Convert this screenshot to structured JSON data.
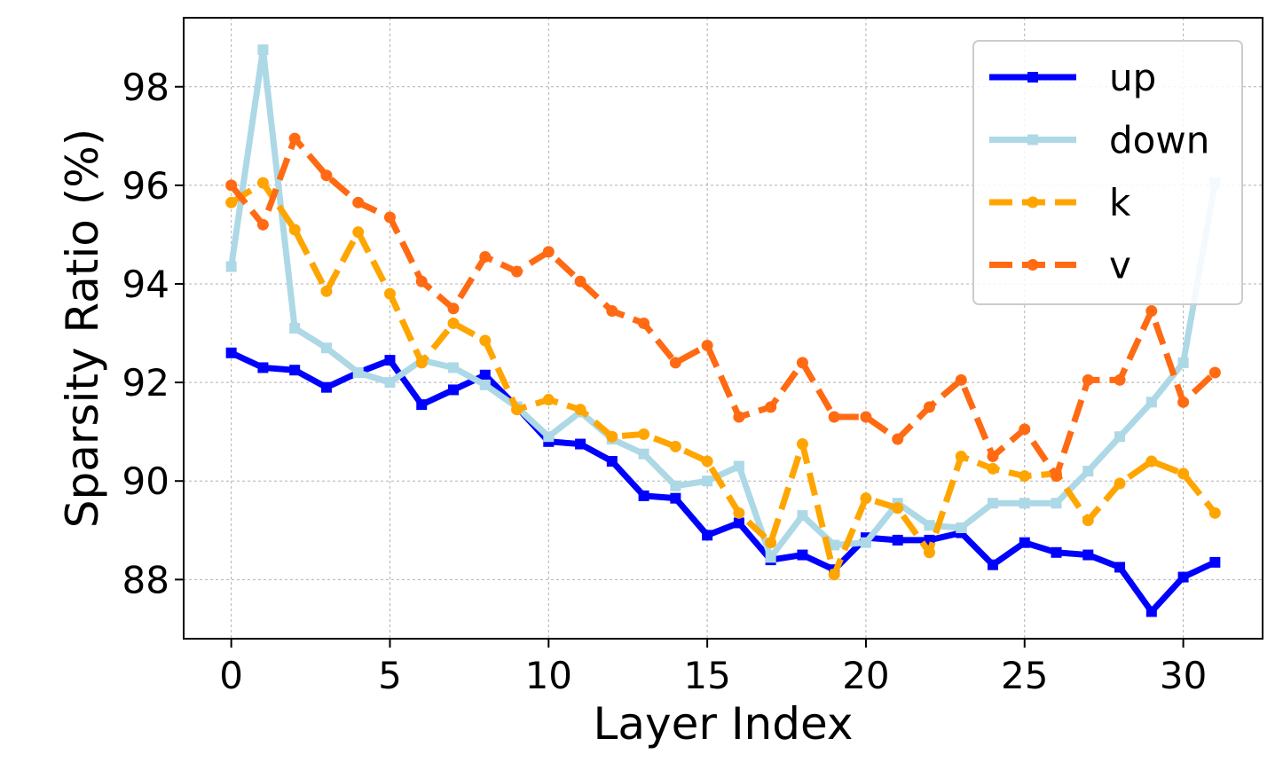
{
  "chart_data": {
    "type": "line",
    "xlabel": "Layer Index",
    "ylabel": "Sparsity Ratio (%)",
    "xlim": [
      -1.5,
      32.5
    ],
    "ylim": [
      86.8,
      99.4
    ],
    "xticks": [
      0,
      5,
      10,
      15,
      20,
      25,
      30
    ],
    "yticks": [
      88,
      90,
      92,
      94,
      96,
      98
    ],
    "grid": true,
    "legend_position": "top-right",
    "x": [
      0,
      1,
      2,
      3,
      4,
      5,
      6,
      7,
      8,
      9,
      10,
      11,
      12,
      13,
      14,
      15,
      16,
      17,
      18,
      19,
      20,
      21,
      22,
      23,
      24,
      25,
      26,
      27,
      28,
      29,
      30,
      31
    ],
    "series": [
      {
        "name": "up",
        "color": "#0000ff",
        "line_style": "solid",
        "marker": "square",
        "values": [
          92.6,
          92.3,
          92.25,
          91.9,
          92.2,
          92.45,
          91.55,
          91.85,
          92.15,
          91.5,
          90.8,
          90.75,
          90.4,
          89.7,
          89.65,
          88.9,
          89.15,
          88.4,
          88.5,
          88.2,
          88.85,
          88.8,
          88.8,
          88.95,
          88.3,
          88.75,
          88.55,
          88.5,
          88.25,
          87.35,
          88.05,
          88.35
        ]
      },
      {
        "name": "down",
        "color": "#add8e6",
        "line_style": "solid",
        "marker": "square",
        "values": [
          94.35,
          98.75,
          93.1,
          92.7,
          92.2,
          92.0,
          92.45,
          92.3,
          91.95,
          91.5,
          90.9,
          91.4,
          90.85,
          90.55,
          89.9,
          90.0,
          90.3,
          88.45,
          89.3,
          88.7,
          88.75,
          89.55,
          89.1,
          89.05,
          89.55,
          89.55,
          89.55,
          90.2,
          90.9,
          91.6,
          92.4,
          96.05
        ]
      },
      {
        "name": "k",
        "color": "#ffa500",
        "line_style": "dashed",
        "marker": "circle",
        "values": [
          95.65,
          96.05,
          95.1,
          93.85,
          95.05,
          93.8,
          92.4,
          93.2,
          92.85,
          91.45,
          91.65,
          91.45,
          90.9,
          90.95,
          90.7,
          90.4,
          89.35,
          88.75,
          90.75,
          88.1,
          89.65,
          89.45,
          88.55,
          90.5,
          90.25,
          90.1,
          90.15,
          89.2,
          89.95,
          90.4,
          90.15,
          89.35
        ]
      },
      {
        "name": "v",
        "color": "#ff6a13",
        "line_style": "dashed",
        "marker": "circle",
        "values": [
          96.0,
          95.2,
          96.95,
          96.2,
          95.65,
          95.35,
          94.05,
          93.5,
          94.55,
          94.25,
          94.65,
          94.05,
          93.45,
          93.2,
          92.4,
          92.75,
          91.3,
          91.5,
          92.4,
          91.3,
          91.3,
          90.85,
          91.5,
          92.05,
          90.5,
          91.05,
          90.1,
          92.05,
          92.05,
          93.45,
          91.6,
          92.2
        ]
      }
    ]
  }
}
